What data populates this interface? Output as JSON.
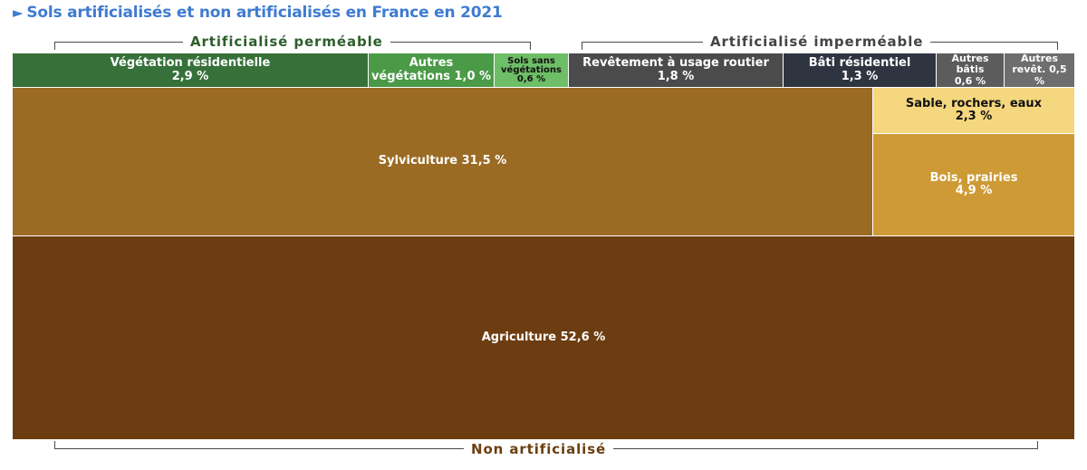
{
  "title": "Sols artificialisés et non artificialisés en France en 2021",
  "groups": {
    "permeable": "Artificialisé perméable",
    "impermeable": "Artificialisé imperméable",
    "non_artificialise": "Non artificialisé"
  },
  "colors": {
    "title": "#3f7bd1",
    "permeable_label": "#2d5e2a",
    "impermeable_label": "#444444",
    "non_artificialise_label": "#6b3f10"
  },
  "chart_data": {
    "type": "treemap",
    "title": "Sols artificialisés et non artificialisés en France en 2021",
    "unit": "%",
    "cells": [
      {
        "group": "Artificialisé perméable",
        "name": "Végétation résidentielle",
        "value": 2.9,
        "label_line1": "Végétation résidentielle",
        "label_line2": "2,9 %",
        "color": "#37713a"
      },
      {
        "group": "Artificialisé perméable",
        "name": "Autres végétations",
        "value": 1.0,
        "label_line1": "Autres",
        "label_line2": "végétations 1,0 %",
        "color": "#4a9a47"
      },
      {
        "group": "Artificialisé perméable",
        "name": "Sols sans végétations",
        "value": 0.6,
        "label_line1": "Sols sans",
        "label_line2": "végétations",
        "label_line3": "0,6 %",
        "color": "#6dbe67"
      },
      {
        "group": "Artificialisé imperméable",
        "name": "Revêtement à usage routier",
        "value": 1.8,
        "label_line1": "Revêtement à usage routier",
        "label_line2": "1,8 %",
        "color": "#4b4b4b"
      },
      {
        "group": "Artificialisé imperméable",
        "name": "Bâti résidentiel",
        "value": 1.3,
        "label_line1": "Bâti résidentiel",
        "label_line2": "1,3 %",
        "color": "#2f3540"
      },
      {
        "group": "Artificialisé imperméable",
        "name": "Autres bâtis",
        "value": 0.6,
        "label_line1": "Autres bâtis",
        "label_line2": "0,6 %",
        "color": "#5c5c5c"
      },
      {
        "group": "Artificialisé imperméable",
        "name": "Autres revêt.",
        "value": 0.5,
        "label_line1": "Autres",
        "label_line2": "revêt. 0,5 %",
        "color": "#6e6e6e"
      },
      {
        "group": "Non artificialisé",
        "name": "Sylviculture",
        "value": 31.5,
        "label_line1": "Sylviculture 31,5 %",
        "color": "#9b6b24"
      },
      {
        "group": "Non artificialisé",
        "name": "Sable, rochers, eaux",
        "value": 2.3,
        "label_line1": "Sable, rochers, eaux",
        "label_line2": "2,3 %",
        "color": "#f4d77e"
      },
      {
        "group": "Non artificialisé",
        "name": "Bois, prairies",
        "value": 4.9,
        "label_line1": "Bois, prairies",
        "label_line2": "4,9 %",
        "color": "#cd9a35"
      },
      {
        "group": "Non artificialisé",
        "name": "Agriculture",
        "value": 52.6,
        "label_line1": "Agriculture 52,6 %",
        "color": "#6d3d12"
      }
    ]
  }
}
